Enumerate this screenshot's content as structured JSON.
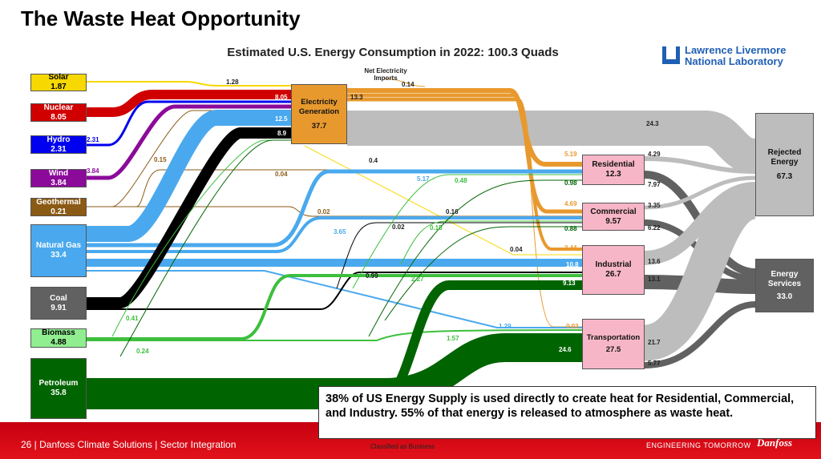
{
  "slide": {
    "title": "The Waste Heat Opportunity",
    "chart_title": "Estimated U.S. Energy Consumption in 2022: 100.3 Quads",
    "logo": "Lawrence Livermore National Laboratory",
    "logo_line1": "Lawrence Livermore",
    "logo_line2": "National Laboratory",
    "note": "38% of US Energy Supply is used directly to create heat for Residential, Commercial, and Industry.   55% of that energy is released to atmosphere as waste heat.",
    "footer_left": "26 | Danfoss Climate Solutions | Sector Integration",
    "footer_mid": "Classified as Business",
    "footer_right": "ENGINEERING TOMORROW",
    "brand": "Danfoss"
  },
  "colors": {
    "solar": "#f7d800",
    "nuclear": "#d10000",
    "hydro": "#0000f0",
    "wind": "#8b0a9a",
    "geothermal": "#8b5a14",
    "natural_gas": "#4aa9ee",
    "coal": "#000000",
    "biomass": "#3dbf3d",
    "petroleum": "#006400",
    "electricity": "#e8992e",
    "sector": "#f7b6c8",
    "rejected": "#bdbdbd",
    "services": "#616161",
    "footer": "#d9101a"
  },
  "sources": [
    {
      "name": "Solar",
      "value": "1.87"
    },
    {
      "name": "Nuclear",
      "value": "8.05"
    },
    {
      "name": "Hydro",
      "value": "2.31"
    },
    {
      "name": "Wind",
      "value": "3.84"
    },
    {
      "name": "Geothermal",
      "value": "0.21"
    },
    {
      "name": "Natural Gas",
      "value": "33.4"
    },
    {
      "name": "Coal",
      "value": "9.91"
    },
    {
      "name": "Biomass",
      "value": "4.88"
    },
    {
      "name": "Petroleum",
      "value": "35.8"
    }
  ],
  "electricity": {
    "name": "Electricity Generation",
    "value": "37.7",
    "imports_label": "Net Electricity Imports"
  },
  "sectors": [
    {
      "name": "Residential",
      "value": "12.3"
    },
    {
      "name": "Commercial",
      "value": "9.57"
    },
    {
      "name": "Industrial",
      "value": "26.7"
    },
    {
      "name": "Transportation",
      "value": "27.5"
    }
  ],
  "outputs": [
    {
      "name": "Rejected Energy",
      "value": "67.3"
    },
    {
      "name": "Energy Services",
      "value": "33.0"
    }
  ],
  "flow_labels": [
    "1.28",
    "8.05",
    "13.3",
    "0.14",
    "12.5",
    "8.9",
    "2.31",
    "3.84",
    "0.15",
    "0.04",
    "0.4",
    "5.17",
    "0.48",
    "5.19",
    "0.98",
    "4.29",
    "7.97",
    "0.02",
    "0.16",
    "4.69",
    "3.35",
    "0.88",
    "6.22",
    "3.65",
    "0.02",
    "0.15",
    "0.04",
    "3.44",
    "10.8",
    "13.6",
    "13.1",
    "0.99",
    "2.27",
    "9.13",
    "0.41",
    "1.29",
    "0.02",
    "1.57",
    "24.6",
    "21.7",
    "5.77",
    "0.24",
    "24.3"
  ]
}
